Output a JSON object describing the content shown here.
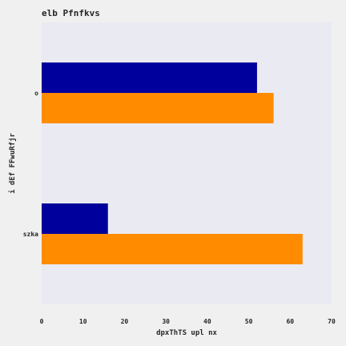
{
  "chart_data": {
    "type": "bar",
    "orientation": "horizontal",
    "title": "elb Pfnfkvs",
    "xlabel": "dpxThTS upl nx",
    "ylabel": "i dEf FFwuRfjr",
    "categories": [
      "o",
      "szka"
    ],
    "series": [
      {
        "values": [
          52,
          16
        ],
        "color": "#00009c"
      },
      {
        "values": [
          56,
          63
        ],
        "color": "#ff8c00"
      }
    ],
    "xlim": [
      0,
      70
    ],
    "xticks": [
      0,
      10,
      20,
      30,
      40,
      50,
      60,
      70
    ],
    "grid": false,
    "legend": "none",
    "background": "#eaeaf2",
    "page_background": "#f0f0f0"
  }
}
